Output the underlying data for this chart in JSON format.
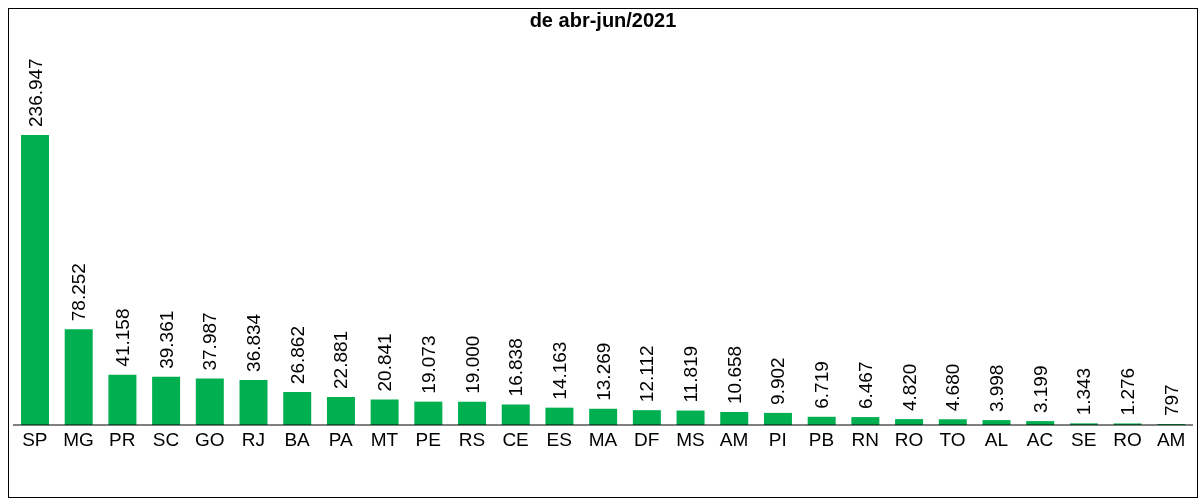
{
  "chart_data": {
    "type": "bar",
    "title": "de abr-jun/2021",
    "categories": [
      "SP",
      "MG",
      "PR",
      "SC",
      "GO",
      "RJ",
      "BA",
      "PA",
      "MT",
      "PE",
      "RS",
      "CE",
      "ES",
      "MA",
      "DF",
      "MS",
      "AM",
      "PI",
      "PB",
      "RN",
      "RO",
      "TO",
      "AL",
      "AC",
      "SE",
      "RO",
      "AM"
    ],
    "values": [
      236947,
      78252,
      41158,
      39361,
      37987,
      36834,
      26862,
      22881,
      20841,
      19073,
      19000,
      16838,
      14163,
      13269,
      12112,
      11819,
      10658,
      9902,
      6719,
      6467,
      4820,
      4680,
      3998,
      3199,
      1343,
      1276,
      797
    ],
    "value_labels": [
      "236.947",
      "78.252",
      "41.158",
      "39.361",
      "37.987",
      "36.834",
      "26.862",
      "22.881",
      "20.841",
      "19.073",
      "19.000",
      "16.838",
      "14.163",
      "13.269",
      "12.112",
      "11.819",
      "10.658",
      "9.902",
      "6.719",
      "6.467",
      "4.820",
      "4.680",
      "3.998",
      "3.199",
      "1.343",
      "1.276",
      "797"
    ],
    "color": "#00b050",
    "grid": false,
    "legend": false
  }
}
